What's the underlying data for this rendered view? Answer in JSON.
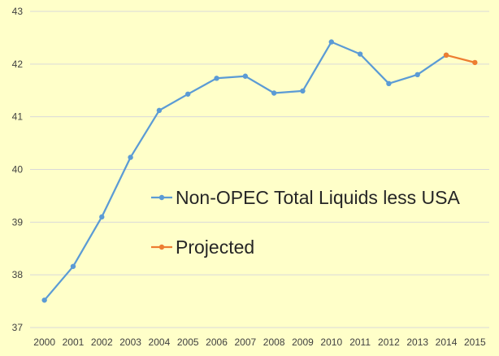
{
  "chart_data": {
    "type": "line",
    "title": "",
    "xlabel": "",
    "ylabel": "",
    "x": [
      "2000",
      "2001",
      "2002",
      "2003",
      "2004",
      "2005",
      "2006",
      "2007",
      "2008",
      "2009",
      "2010",
      "2011",
      "2012",
      "2013",
      "2014",
      "2015"
    ],
    "ylim": [
      37,
      43
    ],
    "yticks": [
      37,
      38,
      39,
      40,
      41,
      42,
      43
    ],
    "grid": true,
    "legend_position": "center-right",
    "series": [
      {
        "name": "Non-OPEC Total Liquids less USA",
        "color": "#5b9bd5",
        "x": [
          "2000",
          "2001",
          "2002",
          "2003",
          "2004",
          "2005",
          "2006",
          "2007",
          "2008",
          "2009",
          "2010",
          "2011",
          "2012",
          "2013",
          "2014"
        ],
        "values": [
          37.52,
          38.16,
          39.1,
          40.23,
          41.12,
          41.43,
          41.73,
          41.77,
          41.45,
          41.49,
          42.42,
          42.19,
          41.63,
          41.8,
          42.17
        ]
      },
      {
        "name": "Projected",
        "color": "#ed7d31",
        "x": [
          "2014",
          "2015"
        ],
        "values": [
          42.17,
          42.03
        ]
      }
    ]
  }
}
